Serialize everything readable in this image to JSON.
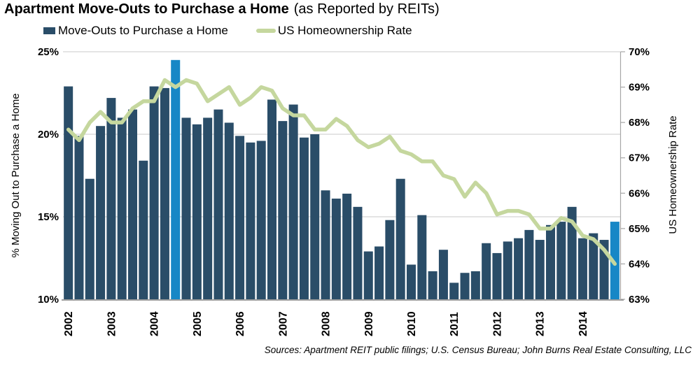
{
  "chart_data": {
    "type": "bar",
    "title": "Apartment Move-Outs to Purchase a Home",
    "subtitle": "(as Reported by REITs)",
    "source_note": "Sources: Apartment REIT public filings; U.S. Census Bureau; John Burns Real Estate Consulting, LLC",
    "legend_position": "top-left",
    "grid": "horizontal-only",
    "x": [
      "2002 Q1",
      "2002 Q2",
      "2002 Q3",
      "2002 Q4",
      "2003 Q1",
      "2003 Q2",
      "2003 Q3",
      "2003 Q4",
      "2004 Q1",
      "2004 Q2",
      "2004 Q3",
      "2004 Q4",
      "2005 Q1",
      "2005 Q2",
      "2005 Q3",
      "2005 Q4",
      "2006 Q1",
      "2006 Q2",
      "2006 Q3",
      "2006 Q4",
      "2007 Q1",
      "2007 Q2",
      "2007 Q3",
      "2007 Q4",
      "2008 Q1",
      "2008 Q2",
      "2008 Q3",
      "2008 Q4",
      "2009 Q1",
      "2009 Q2",
      "2009 Q3",
      "2009 Q4",
      "2010 Q1",
      "2010 Q2",
      "2010 Q3",
      "2010 Q4",
      "2011 Q1",
      "2011 Q2",
      "2011 Q3",
      "2011 Q4",
      "2012 Q1",
      "2012 Q2",
      "2012 Q3",
      "2012 Q4",
      "2013 Q1",
      "2013 Q2",
      "2013 Q3",
      "2013 Q4",
      "2014 Q1",
      "2014 Q2",
      "2014 Q3",
      "2014 Q4"
    ],
    "x_year_ticks": [
      {
        "index": 0,
        "label": "2002"
      },
      {
        "index": 4,
        "label": "2003"
      },
      {
        "index": 8,
        "label": "2004"
      },
      {
        "index": 12,
        "label": "2005"
      },
      {
        "index": 16,
        "label": "2006"
      },
      {
        "index": 20,
        "label": "2007"
      },
      {
        "index": 24,
        "label": "2008"
      },
      {
        "index": 28,
        "label": "2009"
      },
      {
        "index": 32,
        "label": "2010"
      },
      {
        "index": 36,
        "label": "2011"
      },
      {
        "index": 40,
        "label": "2012"
      },
      {
        "index": 44,
        "label": "2013"
      },
      {
        "index": 48,
        "label": "2014"
      }
    ],
    "series": [
      {
        "name": "Move-Outs to Purchase a Home",
        "type": "bar",
        "axis": "left",
        "color": "#2a4d68",
        "highlight_color": "#1787c6",
        "highlight_indices": [
          10,
          51
        ],
        "values": [
          22.9,
          19.9,
          17.3,
          20.5,
          22.2,
          21.0,
          21.5,
          18.4,
          22.9,
          22.8,
          24.5,
          21.0,
          20.6,
          21.0,
          21.5,
          20.7,
          19.9,
          19.5,
          19.6,
          22.1,
          20.8,
          21.8,
          19.8,
          20.0,
          16.6,
          16.1,
          16.4,
          15.6,
          12.9,
          13.2,
          14.8,
          17.3,
          12.1,
          15.1,
          11.7,
          13.0,
          11.0,
          11.6,
          11.7,
          13.4,
          12.8,
          13.5,
          13.7,
          14.2,
          13.6,
          14.5,
          14.7,
          15.6,
          13.7,
          14.0,
          13.6,
          14.7
        ]
      },
      {
        "name": "US Homeownership Rate",
        "type": "line",
        "axis": "right",
        "color": "#c5d79e",
        "values": [
          67.8,
          67.5,
          68.0,
          68.3,
          68.0,
          68.0,
          68.4,
          68.6,
          68.6,
          69.2,
          69.0,
          69.2,
          69.1,
          68.6,
          68.8,
          69.0,
          68.5,
          68.7,
          69.0,
          68.9,
          68.4,
          68.2,
          68.2,
          67.8,
          67.8,
          68.1,
          67.9,
          67.5,
          67.3,
          67.4,
          67.6,
          67.2,
          67.1,
          66.9,
          66.9,
          66.5,
          66.4,
          65.9,
          66.3,
          66.0,
          65.4,
          65.5,
          65.5,
          65.4,
          65.0,
          65.0,
          65.3,
          65.2,
          64.8,
          64.7,
          64.4,
          64.0
        ]
      }
    ],
    "left_axis": {
      "label": "% Moving Out to Purchase a Home",
      "lim": [
        10,
        25
      ],
      "ticks": [
        25,
        20,
        15,
        10
      ],
      "gridlines": [
        25,
        20,
        15
      ],
      "tick_format": "%"
    },
    "right_axis": {
      "label": "US Homeownership Rate",
      "lim": [
        63,
        70
      ],
      "ticks": [
        70,
        69,
        68,
        67,
        66,
        65,
        64,
        63
      ],
      "tick_format": "%"
    }
  },
  "colors": {
    "gridline": "#c9c9c9",
    "axis_line": "#7f7f7f",
    "right_axis_line": "#a6a6a6",
    "text": "#000000"
  }
}
